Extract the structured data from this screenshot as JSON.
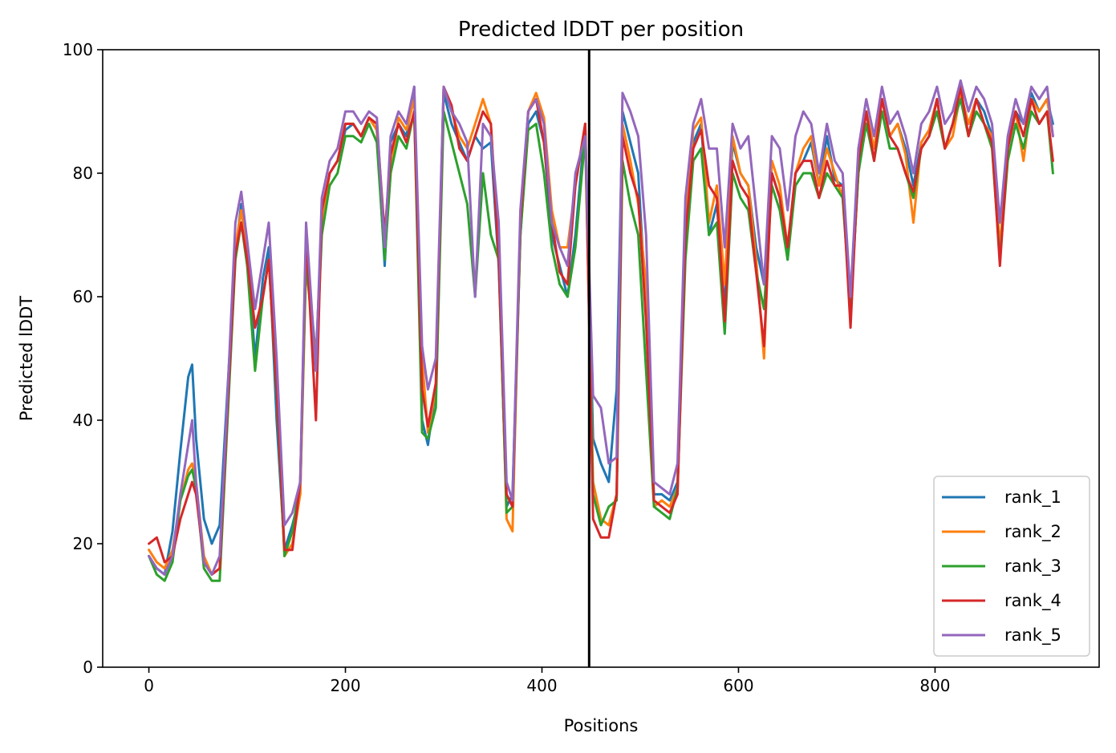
{
  "chart_data": {
    "type": "line",
    "title": "Predicted lDDT per position",
    "xlabel": "Positions",
    "ylabel": "Predicted lDDT",
    "xlim": [
      -47,
      967
    ],
    "ylim": [
      0,
      100
    ],
    "xticks": [
      0,
      200,
      400,
      600,
      800
    ],
    "yticks": [
      0,
      20,
      40,
      60,
      80,
      100
    ],
    "grid": false,
    "legend_position": "lower-right",
    "chain_break_x": 448,
    "x": [
      0,
      8,
      16,
      24,
      32,
      40,
      44,
      48,
      56,
      64,
      72,
      80,
      88,
      94,
      100,
      108,
      116,
      122,
      130,
      138,
      146,
      154,
      160,
      170,
      176,
      184,
      192,
      200,
      208,
      216,
      224,
      232,
      240,
      246,
      254,
      262,
      270,
      278,
      284,
      292,
      300,
      308,
      316,
      324,
      332,
      340,
      348,
      356,
      364,
      370,
      378,
      386,
      394,
      402,
      410,
      418,
      426,
      434,
      444,
      452,
      460,
      468,
      476,
      482,
      490,
      498,
      506,
      514,
      522,
      530,
      538,
      546,
      554,
      562,
      570,
      578,
      586,
      594,
      602,
      610,
      618,
      626,
      634,
      642,
      650,
      658,
      666,
      674,
      682,
      690,
      698,
      706,
      714,
      722,
      730,
      738,
      746,
      754,
      762,
      770,
      778,
      786,
      794,
      802,
      810,
      818,
      826,
      834,
      842,
      850,
      858,
      866,
      874,
      882,
      890,
      898,
      906,
      914,
      920
    ],
    "series": [
      {
        "name": "rank_1",
        "color": "#1f77b4",
        "values": [
          18,
          16,
          15,
          22,
          35,
          47,
          49,
          37,
          24,
          20,
          23,
          45,
          67,
          75,
          68,
          50,
          63,
          68,
          40,
          19,
          23,
          28,
          68,
          50,
          72,
          80,
          82,
          87,
          88,
          86,
          89,
          87,
          65,
          85,
          88,
          86,
          94,
          40,
          36,
          45,
          93,
          88,
          85,
          82,
          86,
          84,
          85,
          65,
          26,
          28,
          70,
          88,
          90,
          85,
          70,
          65,
          60,
          70,
          88,
          37,
          33,
          30,
          45,
          90,
          85,
          80,
          58,
          28,
          28,
          27,
          30,
          70,
          85,
          88,
          70,
          75,
          58,
          85,
          80,
          78,
          68,
          62,
          80,
          76,
          66,
          80,
          82,
          85,
          78,
          86,
          79,
          78,
          58,
          80,
          90,
          84,
          92,
          86,
          88,
          84,
          78,
          85,
          87,
          92,
          84,
          88,
          93,
          88,
          92,
          90,
          86,
          66,
          85,
          90,
          88,
          93,
          90,
          92,
          88
        ]
      },
      {
        "name": "rank_2",
        "color": "#ff7f0e",
        "values": [
          19,
          17,
          16,
          19,
          27,
          32,
          33,
          30,
          18,
          15,
          16,
          42,
          68,
          74,
          67,
          55,
          60,
          66,
          45,
          18,
          20,
          28,
          65,
          50,
          72,
          80,
          82,
          88,
          88,
          86,
          89,
          87,
          67,
          80,
          89,
          87,
          92,
          50,
          38,
          45,
          94,
          90,
          86,
          84,
          88,
          92,
          88,
          68,
          24,
          22,
          72,
          90,
          93,
          89,
          74,
          68,
          68,
          78,
          88,
          30,
          24,
          23,
          28,
          88,
          82,
          75,
          62,
          26,
          27,
          26,
          29,
          72,
          87,
          89,
          72,
          78,
          62,
          86,
          80,
          78,
          66,
          50,
          82,
          78,
          68,
          80,
          84,
          86,
          78,
          84,
          80,
          76,
          60,
          82,
          90,
          84,
          92,
          86,
          88,
          83,
          72,
          85,
          87,
          92,
          84,
          86,
          93,
          88,
          92,
          88,
          86,
          68,
          84,
          90,
          82,
          92,
          90,
          92,
          86
        ]
      },
      {
        "name": "rank_3",
        "color": "#2ca02c",
        "values": [
          18,
          15,
          14,
          17,
          27,
          31,
          32,
          29,
          16,
          14,
          14,
          40,
          66,
          72,
          65,
          48,
          60,
          66,
          44,
          18,
          22,
          30,
          66,
          48,
          70,
          78,
          80,
          86,
          86,
          85,
          88,
          85,
          66,
          80,
          86,
          84,
          90,
          38,
          37,
          42,
          90,
          85,
          80,
          75,
          60,
          80,
          70,
          66,
          25,
          26,
          70,
          87,
          88,
          80,
          68,
          62,
          60,
          68,
          86,
          28,
          23,
          26,
          27,
          82,
          75,
          70,
          48,
          26,
          25,
          24,
          29,
          66,
          82,
          84,
          70,
          72,
          54,
          80,
          76,
          74,
          64,
          58,
          78,
          74,
          66,
          78,
          80,
          80,
          76,
          80,
          78,
          76,
          58,
          80,
          88,
          82,
          90,
          84,
          84,
          80,
          76,
          84,
          86,
          90,
          84,
          88,
          92,
          86,
          90,
          88,
          84,
          66,
          82,
          88,
          84,
          90,
          88,
          90,
          80
        ]
      },
      {
        "name": "rank_4",
        "color": "#d62728",
        "values": [
          20,
          21,
          17,
          18,
          24,
          28,
          30,
          28,
          17,
          15,
          16,
          42,
          67,
          72,
          66,
          55,
          60,
          66,
          45,
          19,
          19,
          30,
          70,
          40,
          74,
          80,
          82,
          88,
          88,
          86,
          89,
          88,
          70,
          83,
          88,
          85,
          90,
          45,
          39,
          46,
          94,
          91,
          84,
          82,
          86,
          90,
          88,
          66,
          28,
          26,
          72,
          90,
          92,
          85,
          72,
          64,
          62,
          78,
          88,
          24,
          21,
          21,
          28,
          86,
          80,
          76,
          56,
          27,
          26,
          25,
          28,
          70,
          84,
          87,
          78,
          76,
          56,
          82,
          78,
          76,
          64,
          52,
          80,
          76,
          68,
          80,
          82,
          82,
          76,
          82,
          78,
          78,
          55,
          82,
          90,
          82,
          92,
          86,
          84,
          80,
          77,
          84,
          86,
          92,
          84,
          88,
          94,
          86,
          92,
          88,
          85,
          65,
          84,
          90,
          86,
          92,
          88,
          90,
          82
        ]
      },
      {
        "name": "rank_5",
        "color": "#9467bd",
        "values": [
          18,
          16,
          15,
          18,
          28,
          36,
          40,
          30,
          17,
          15,
          18,
          44,
          72,
          77,
          69,
          58,
          66,
          72,
          50,
          23,
          25,
          30,
          72,
          48,
          76,
          82,
          84,
          90,
          90,
          88,
          90,
          89,
          68,
          86,
          90,
          88,
          94,
          52,
          45,
          50,
          94,
          90,
          88,
          85,
          60,
          88,
          86,
          72,
          30,
          27,
          74,
          90,
          92,
          88,
          72,
          68,
          65,
          80,
          86,
          44,
          42,
          33,
          34,
          93,
          90,
          86,
          70,
          30,
          29,
          28,
          33,
          76,
          88,
          92,
          84,
          84,
          68,
          88,
          84,
          86,
          74,
          62,
          86,
          84,
          74,
          86,
          90,
          88,
          80,
          88,
          82,
          80,
          60,
          84,
          92,
          86,
          94,
          88,
          90,
          86,
          80,
          88,
          90,
          94,
          88,
          90,
          95,
          90,
          94,
          92,
          88,
          72,
          86,
          92,
          88,
          94,
          92,
          94,
          86
        ]
      }
    ]
  }
}
